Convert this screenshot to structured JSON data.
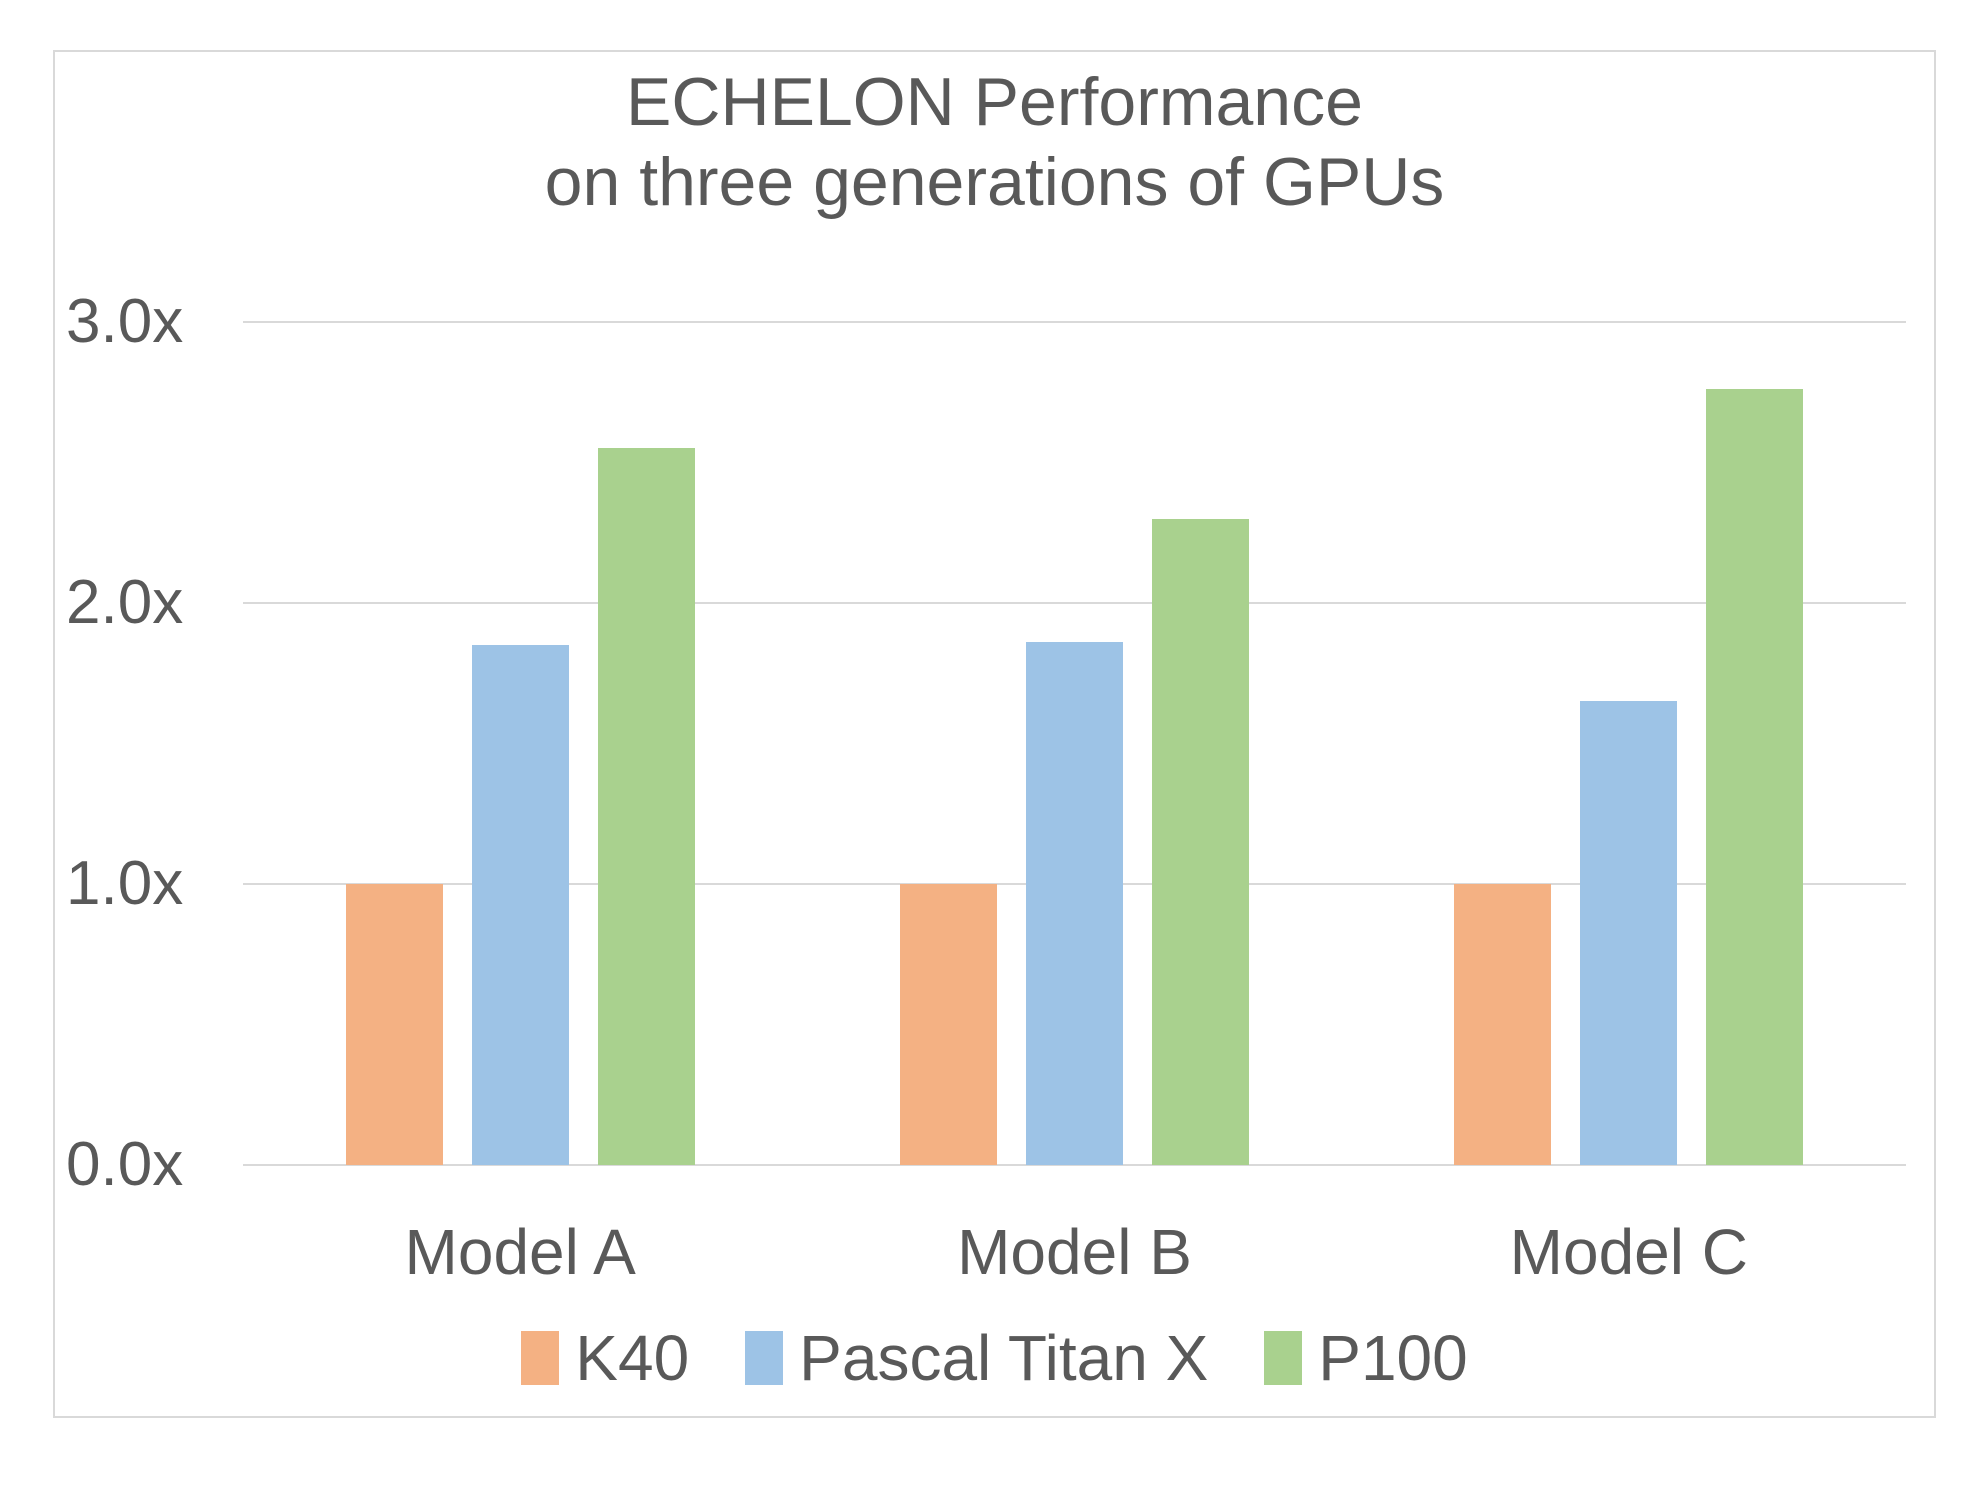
{
  "chart_data": {
    "type": "bar",
    "title": "ECHELON Performance on three generations of GPUs",
    "title_lines": [
      "ECHELON Performance",
      "on three generations of GPUs"
    ],
    "categories": [
      "Model A",
      "Model B",
      "Model C"
    ],
    "series": [
      {
        "name": "K40",
        "color": "#F4B183",
        "values": [
          1.0,
          1.0,
          1.0
        ]
      },
      {
        "name": "Pascal Titan X",
        "color": "#9DC3E6",
        "values": [
          1.85,
          1.86,
          1.65
        ]
      },
      {
        "name": "P100",
        "color": "#A9D18E",
        "values": [
          2.55,
          2.3,
          2.76
        ]
      }
    ],
    "xlabel": "",
    "ylabel": "",
    "ylim": [
      0,
      3
    ],
    "y_ticks": [
      {
        "value": 3,
        "label": "3.0x"
      },
      {
        "value": 2,
        "label": "2.0x"
      },
      {
        "value": 1,
        "label": "1.0x"
      },
      {
        "value": 0,
        "label": "0.0x"
      }
    ],
    "grid": true,
    "legend_position": "bottom"
  },
  "colors": {
    "text": "#595959",
    "gridline": "#D9D9D9",
    "border": "#D9D9D9",
    "background": "#FFFFFF"
  }
}
